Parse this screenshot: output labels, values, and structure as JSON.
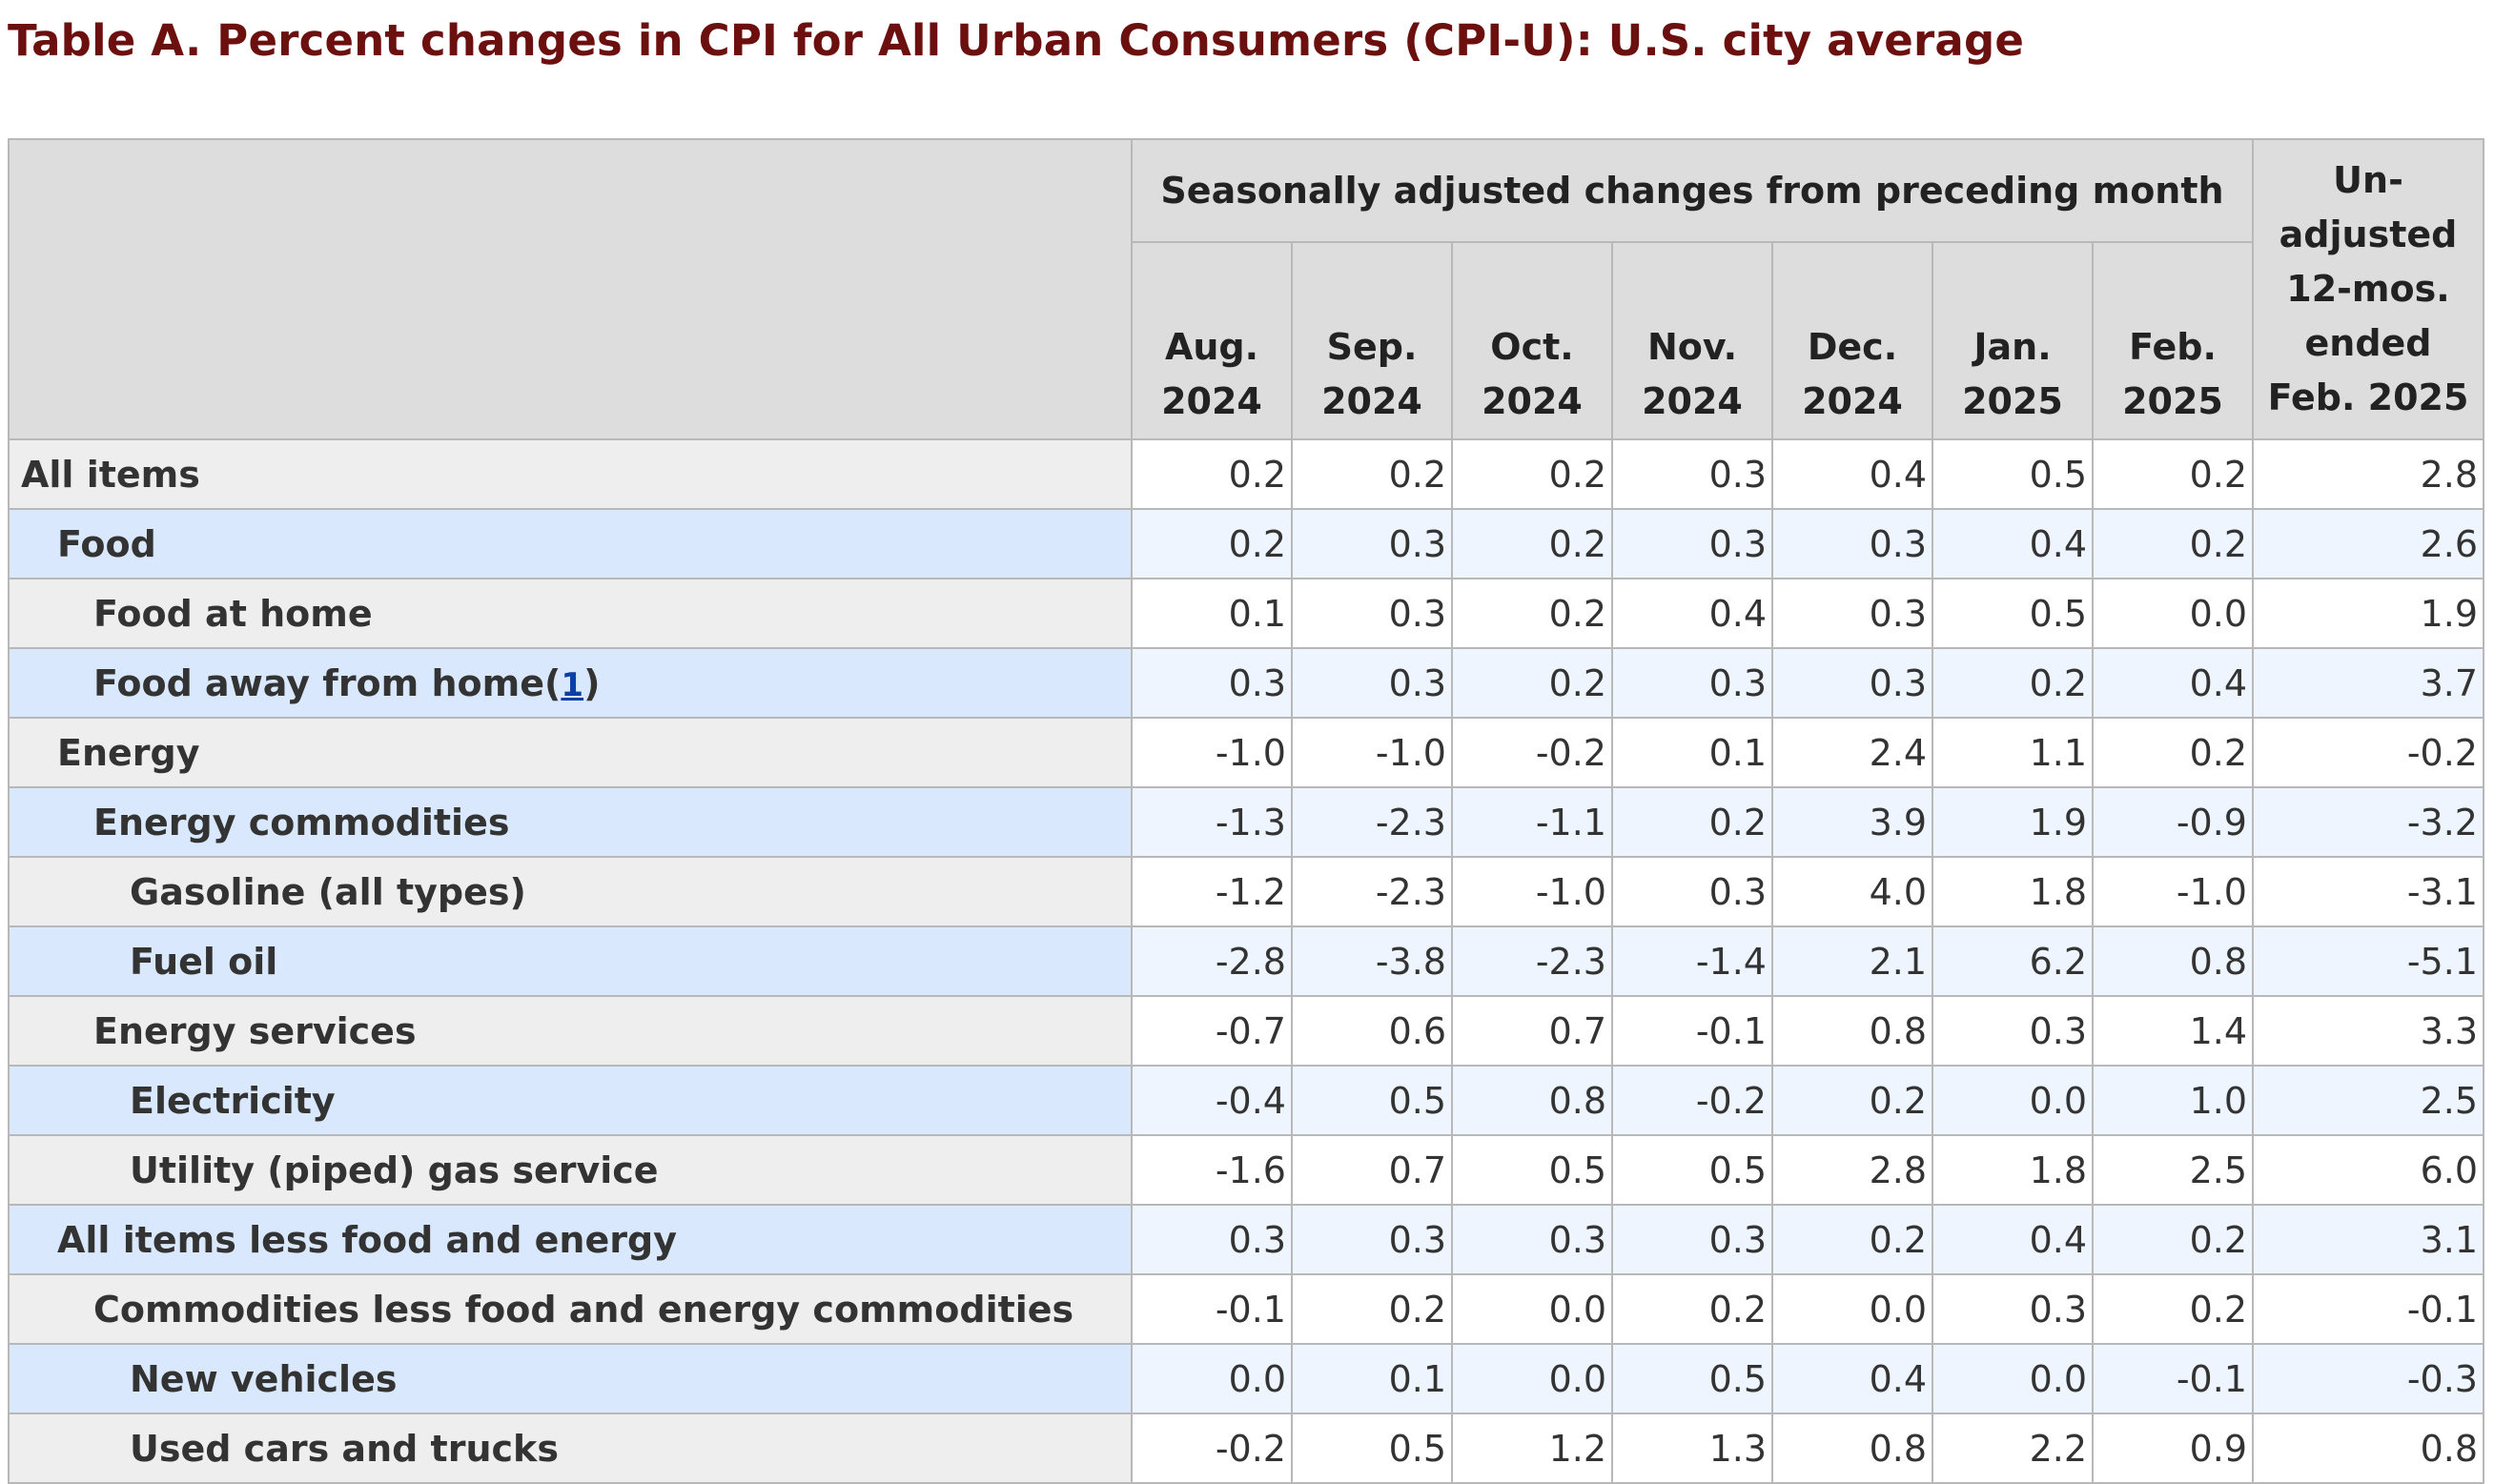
{
  "title": "Table A. Percent changes in CPI for All Urban Consumers (CPI-U): U.S. city average",
  "header": {
    "group_label": "Seasonally adjusted changes from preceding month",
    "months": [
      {
        "line1": "Aug.",
        "line2": "2024"
      },
      {
        "line1": "Sep.",
        "line2": "2024"
      },
      {
        "line1": "Oct.",
        "line2": "2024"
      },
      {
        "line1": "Nov.",
        "line2": "2024"
      },
      {
        "line1": "Dec.",
        "line2": "2024"
      },
      {
        "line1": "Jan.",
        "line2": "2025"
      },
      {
        "line1": "Feb.",
        "line2": "2025"
      }
    ],
    "unadjusted": {
      "line1": "Un-",
      "line2": "adjusted",
      "line3": "12-mos.",
      "line4": "ended",
      "line5": "Feb. 2025"
    }
  },
  "rows": [
    {
      "label": "All items",
      "indent": 0,
      "values": [
        "0.2",
        "0.2",
        "0.2",
        "0.3",
        "0.4",
        "0.5",
        "0.2"
      ],
      "unadjusted": "2.8"
    },
    {
      "label": "Food",
      "indent": 1,
      "values": [
        "0.2",
        "0.3",
        "0.2",
        "0.3",
        "0.3",
        "0.4",
        "0.2"
      ],
      "unadjusted": "2.6"
    },
    {
      "label": "Food at home",
      "indent": 2,
      "values": [
        "0.1",
        "0.3",
        "0.2",
        "0.4",
        "0.3",
        "0.5",
        "0.0"
      ],
      "unadjusted": "1.9"
    },
    {
      "label": "Food away from home",
      "indent": 2,
      "footnote": "1",
      "values": [
        "0.3",
        "0.3",
        "0.2",
        "0.3",
        "0.3",
        "0.2",
        "0.4"
      ],
      "unadjusted": "3.7"
    },
    {
      "label": "Energy",
      "indent": 1,
      "values": [
        "-1.0",
        "-1.0",
        "-0.2",
        "0.1",
        "2.4",
        "1.1",
        "0.2"
      ],
      "unadjusted": "-0.2"
    },
    {
      "label": "Energy commodities",
      "indent": 2,
      "values": [
        "-1.3",
        "-2.3",
        "-1.1",
        "0.2",
        "3.9",
        "1.9",
        "-0.9"
      ],
      "unadjusted": "-3.2"
    },
    {
      "label": "Gasoline (all types)",
      "indent": 3,
      "values": [
        "-1.2",
        "-2.3",
        "-1.0",
        "0.3",
        "4.0",
        "1.8",
        "-1.0"
      ],
      "unadjusted": "-3.1"
    },
    {
      "label": "Fuel oil",
      "indent": 3,
      "values": [
        "-2.8",
        "-3.8",
        "-2.3",
        "-1.4",
        "2.1",
        "6.2",
        "0.8"
      ],
      "unadjusted": "-5.1"
    },
    {
      "label": "Energy services",
      "indent": 2,
      "values": [
        "-0.7",
        "0.6",
        "0.7",
        "-0.1",
        "0.8",
        "0.3",
        "1.4"
      ],
      "unadjusted": "3.3"
    },
    {
      "label": "Electricity",
      "indent": 3,
      "values": [
        "-0.4",
        "0.5",
        "0.8",
        "-0.2",
        "0.2",
        "0.0",
        "1.0"
      ],
      "unadjusted": "2.5"
    },
    {
      "label": "Utility (piped) gas service",
      "indent": 3,
      "values": [
        "-1.6",
        "0.7",
        "0.5",
        "0.5",
        "2.8",
        "1.8",
        "2.5"
      ],
      "unadjusted": "6.0"
    },
    {
      "label": "All items less food and energy",
      "indent": 1,
      "values": [
        "0.3",
        "0.3",
        "0.3",
        "0.3",
        "0.2",
        "0.4",
        "0.2"
      ],
      "unadjusted": "3.1"
    },
    {
      "label": "Commodities less food and energy commodities",
      "indent": 2,
      "values": [
        "-0.1",
        "0.2",
        "0.0",
        "0.2",
        "0.0",
        "0.3",
        "0.2"
      ],
      "unadjusted": "-0.1"
    },
    {
      "label": "New vehicles",
      "indent": 3,
      "values": [
        "0.0",
        "0.1",
        "0.0",
        "0.5",
        "0.4",
        "0.0",
        "-0.1"
      ],
      "unadjusted": "-0.3"
    },
    {
      "label": "Used cars and trucks",
      "indent": 3,
      "values": [
        "-0.2",
        "0.5",
        "1.2",
        "1.3",
        "0.8",
        "2.2",
        "0.9"
      ],
      "unadjusted": "0.8"
    }
  ]
}
